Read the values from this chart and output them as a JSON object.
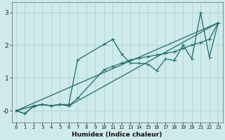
{
  "xlabel": "Humidex (Indice chaleur)",
  "ylabel": "",
  "xlim": [
    -0.5,
    23.5
  ],
  "ylim": [
    -0.35,
    3.3
  ],
  "yticks": [
    0,
    1,
    2,
    3
  ],
  "ytick_labels": [
    "-0",
    "1",
    "2",
    "3"
  ],
  "xticks": [
    0,
    1,
    2,
    3,
    4,
    5,
    6,
    7,
    8,
    9,
    10,
    11,
    12,
    13,
    14,
    15,
    16,
    17,
    18,
    19,
    20,
    21,
    22,
    23
  ],
  "bg_color": "#ceeaea",
  "line_color": "#1e6b6b",
  "grid_color": "#aed4d4",
  "line1_x": [
    0,
    1,
    2,
    3,
    4,
    5,
    6,
    7,
    10,
    11,
    12,
    13,
    14,
    15,
    16,
    17,
    18,
    19,
    20,
    21,
    22,
    23
  ],
  "line1_y": [
    0.0,
    -0.09,
    0.15,
    0.19,
    0.15,
    0.19,
    0.19,
    1.55,
    2.02,
    2.18,
    1.73,
    1.45,
    1.45,
    1.42,
    1.22,
    1.58,
    1.53,
    2.0,
    1.58,
    2.98,
    1.63,
    2.68
  ],
  "line2_x": [
    0,
    2,
    3,
    4,
    5,
    6,
    7,
    10,
    11,
    12,
    13,
    14,
    15,
    16,
    17,
    18,
    19,
    20,
    21,
    22,
    23
  ],
  "line2_y": [
    0.0,
    0.14,
    0.19,
    0.15,
    0.19,
    0.15,
    0.38,
    1.25,
    1.35,
    1.45,
    1.55,
    1.6,
    1.65,
    1.7,
    1.75,
    1.8,
    1.9,
    2.0,
    2.08,
    2.18,
    2.68
  ],
  "line3_x": [
    0,
    1,
    2,
    3,
    4,
    5,
    6,
    23
  ],
  "line3_y": [
    0.0,
    -0.09,
    0.14,
    0.19,
    0.15,
    0.19,
    0.15,
    2.68
  ],
  "line4_x": [
    0,
    23
  ],
  "line4_y": [
    0.0,
    2.68
  ]
}
